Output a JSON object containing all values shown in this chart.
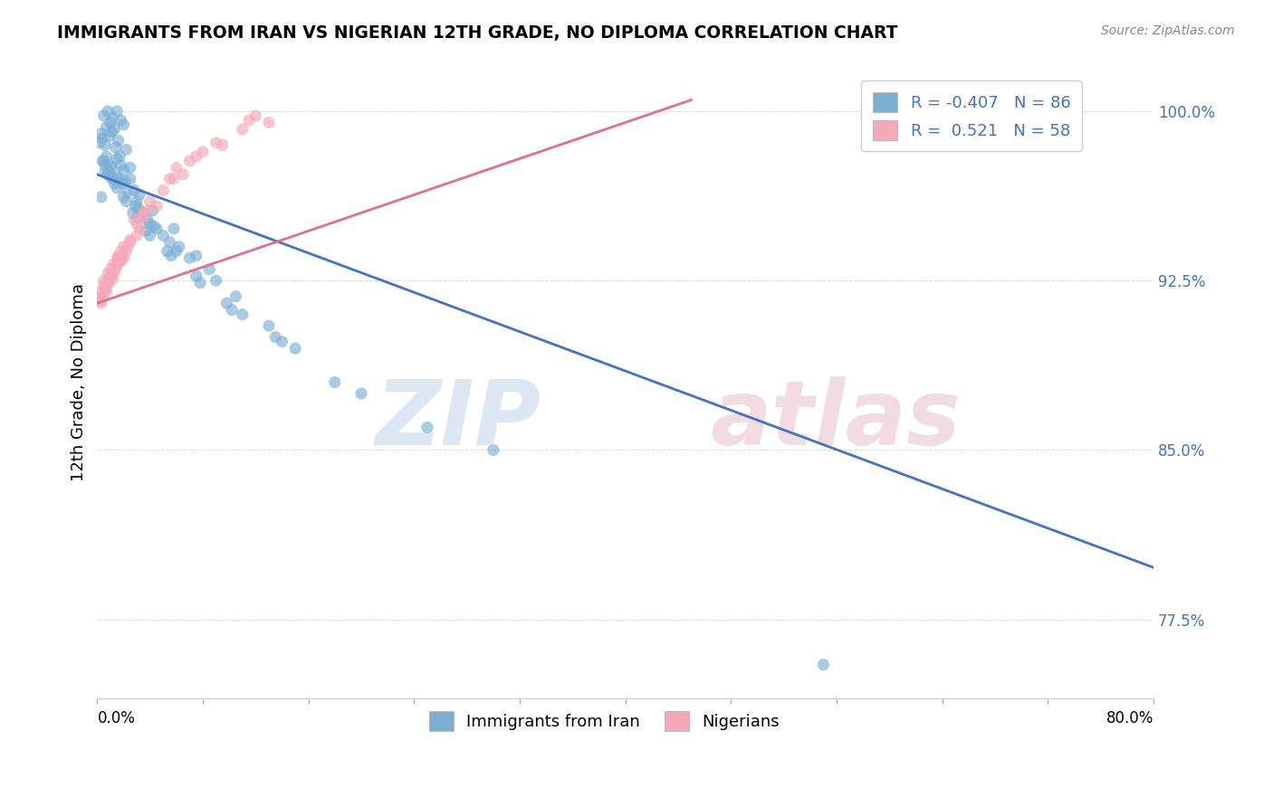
{
  "title": "IMMIGRANTS FROM IRAN VS NIGERIAN 12TH GRADE, NO DIPLOMA CORRELATION CHART",
  "source": "Source: ZipAtlas.com",
  "ylabel": "12th Grade, No Diploma",
  "legend_label_blue": "Immigrants from Iran",
  "legend_label_pink": "Nigerians",
  "R_blue": -0.407,
  "N_blue": 86,
  "R_pink": 0.521,
  "N_pink": 58,
  "xlim": [
    0.0,
    80.0
  ],
  "ylim": [
    74.0,
    102.0
  ],
  "yticks": [
    77.5,
    85.0,
    92.5,
    100.0
  ],
  "ytick_labels": [
    "77.5%",
    "85.0%",
    "92.5%",
    "100.0%"
  ],
  "blue_color": "#7BAFD4",
  "pink_color": "#F4A8B8",
  "blue_line_color": "#4472C4",
  "pink_line_color": "#E07090",
  "background_color": "#FFFFFF",
  "grid_color": "#DDDDDD",
  "blue_scatter_x": [
    0.5,
    0.8,
    1.0,
    1.2,
    1.5,
    0.3,
    0.7,
    1.8,
    2.0,
    0.4,
    1.1,
    1.3,
    0.6,
    0.9,
    1.6,
    2.2,
    0.2,
    1.4,
    0.5,
    1.7,
    2.5,
    0.8,
    1.2,
    1.9,
    0.6,
    2.8,
    1.0,
    1.5,
    0.3,
    2.1,
    3.0,
    3.5,
    4.0,
    2.9,
    3.8,
    5.0,
    4.5,
    6.0,
    5.5,
    7.0,
    1.5,
    2.0,
    1.8,
    2.5,
    3.2,
    4.2,
    5.8,
    7.5,
    9.0,
    11.0,
    0.7,
    1.1,
    1.6,
    2.3,
    3.1,
    4.3,
    6.2,
    8.5,
    10.5,
    13.0,
    0.4,
    0.9,
    1.3,
    2.0,
    2.7,
    3.7,
    5.3,
    7.5,
    9.8,
    13.5,
    0.6,
    1.0,
    1.5,
    2.2,
    3.0,
    4.0,
    5.6,
    7.8,
    10.2,
    14.0,
    15.0,
    18.0,
    20.0,
    25.0,
    30.0,
    55.0
  ],
  "blue_scatter_y": [
    99.8,
    100.0,
    99.5,
    99.7,
    100.0,
    99.0,
    99.3,
    99.6,
    99.4,
    98.8,
    99.1,
    99.2,
    98.5,
    98.9,
    98.7,
    98.3,
    98.6,
    98.4,
    97.8,
    98.0,
    97.5,
    97.2,
    97.0,
    96.8,
    97.3,
    96.5,
    97.6,
    97.1,
    96.2,
    96.9,
    96.0,
    95.5,
    95.0,
    95.8,
    95.2,
    94.5,
    94.8,
    93.8,
    94.2,
    93.5,
    97.9,
    97.4,
    97.6,
    97.0,
    96.3,
    95.6,
    94.8,
    93.6,
    92.5,
    91.0,
    98.0,
    97.5,
    97.0,
    96.4,
    95.7,
    94.9,
    94.0,
    93.0,
    91.8,
    90.5,
    97.8,
    97.3,
    96.8,
    96.2,
    95.5,
    94.7,
    93.8,
    92.7,
    91.5,
    90.0,
    97.6,
    97.1,
    96.6,
    96.0,
    95.3,
    94.5,
    93.6,
    92.4,
    91.2,
    89.8,
    89.5,
    88.0,
    87.5,
    86.0,
    85.0,
    75.5
  ],
  "pink_scatter_x": [
    0.2,
    0.5,
    0.8,
    1.2,
    1.6,
    0.3,
    0.7,
    1.0,
    1.4,
    1.8,
    2.2,
    0.4,
    0.9,
    1.3,
    1.7,
    2.5,
    0.6,
    1.5,
    2.0,
    3.0,
    3.5,
    0.5,
    1.0,
    1.8,
    2.8,
    4.0,
    5.5,
    7.0,
    9.0,
    11.0,
    0.3,
    0.7,
    1.2,
    2.0,
    3.0,
    4.5,
    6.5,
    9.5,
    13.0,
    1.1,
    1.6,
    2.5,
    3.8,
    5.8,
    8.0,
    12.0,
    0.8,
    1.5,
    2.3,
    3.5,
    5.0,
    7.5,
    11.5,
    0.4,
    1.0,
    1.9,
    3.2,
    6.0
  ],
  "pink_scatter_y": [
    92.0,
    92.5,
    92.8,
    93.2,
    93.6,
    91.5,
    92.2,
    92.7,
    93.0,
    93.4,
    93.8,
    91.8,
    92.4,
    92.9,
    93.3,
    94.2,
    92.1,
    93.5,
    94.0,
    95.0,
    95.5,
    92.3,
    93.0,
    93.8,
    95.2,
    96.0,
    97.0,
    97.8,
    98.6,
    99.2,
    91.6,
    92.0,
    92.6,
    93.5,
    94.5,
    95.8,
    97.2,
    98.5,
    99.5,
    92.8,
    93.4,
    94.3,
    95.6,
    97.0,
    98.2,
    99.8,
    92.5,
    93.2,
    94.0,
    95.3,
    96.5,
    98.0,
    99.6,
    91.8,
    92.6,
    93.5,
    94.8,
    97.5
  ],
  "blue_line_x0": 0.0,
  "blue_line_y0": 97.2,
  "blue_line_x1": 80.0,
  "blue_line_y1": 79.8,
  "pink_line_x0": 0.0,
  "pink_line_y0": 91.5,
  "pink_line_x1": 45.0,
  "pink_line_y1": 100.5
}
